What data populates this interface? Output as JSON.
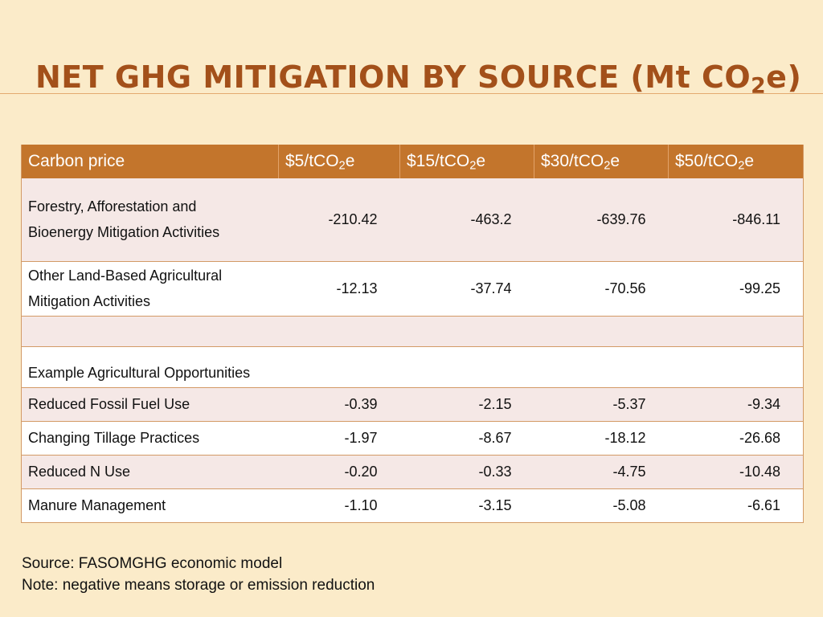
{
  "title": {
    "main": "NET GHG MITIGATION BY SOURCE",
    "unit_open": " (Mt CO",
    "unit_sub": "2",
    "unit_close": "e)"
  },
  "table": {
    "header": {
      "label": "Carbon price",
      "prices": [
        {
          "pre": "$5/tCO",
          "sub": "2",
          "post": "e"
        },
        {
          "pre": "$15/tCO",
          "sub": "2",
          "post": "e"
        },
        {
          "pre": "$30/tCO",
          "sub": "2",
          "post": "e"
        },
        {
          "pre": "$50/tCO",
          "sub": "2",
          "post": "e"
        }
      ]
    },
    "rows": [
      {
        "label_line1": "Forestry, Afforestation and",
        "label_line2": "Bioenergy Mitigation Activities",
        "values": [
          "-210.42",
          "-463.2",
          "-639.76",
          "-846.11"
        ]
      },
      {
        "label_line1": "Other Land-Based Agricultural",
        "label_line2": "Mitigation Activities",
        "values": [
          "-12.13",
          "-37.74",
          "-70.56",
          "-99.25"
        ]
      }
    ],
    "section_label": "Example Agricultural Opportunities",
    "opportunities": [
      {
        "label": "Reduced Fossil Fuel Use",
        "values": [
          "-0.39",
          "-2.15",
          "-5.37",
          "-9.34"
        ]
      },
      {
        "label": "Changing Tillage Practices",
        "values": [
          "-1.97",
          "-8.67",
          "-18.12",
          "-26.68"
        ]
      },
      {
        "label": "Reduced N Use",
        "values": [
          "-0.20",
          "-0.33",
          "-4.75",
          "-10.48"
        ]
      },
      {
        "label": "Manure Management",
        "values": [
          "-1.10",
          "-3.15",
          "-5.08",
          "-6.61"
        ]
      }
    ]
  },
  "footer": {
    "source": "Source: FASOMGHG economic model",
    "note": "Note: negative means storage or emission reduction"
  },
  "colors": {
    "background": "#fbebc9",
    "title": "#a3501a",
    "header_fill": "#c3752c",
    "row_shade": "#f5e8e6",
    "rule": "#d39a66"
  }
}
